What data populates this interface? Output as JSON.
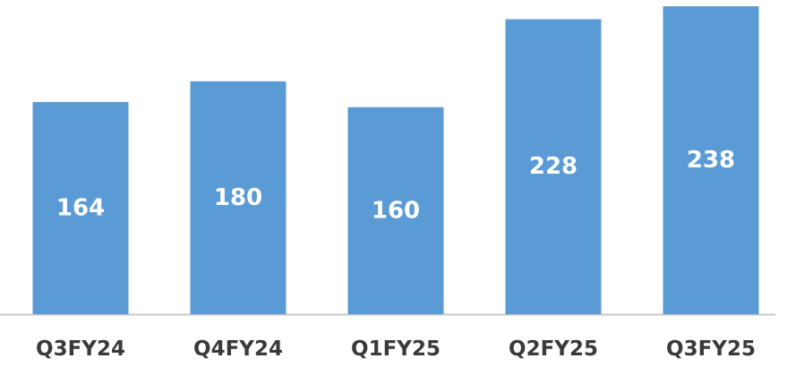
{
  "chart_data": {
    "type": "bar",
    "categories": [
      "Q3FY24",
      "Q4FY24",
      "Q1FY25",
      "Q2FY25",
      "Q3FY25"
    ],
    "values": [
      164,
      180,
      160,
      228,
      238
    ],
    "color": "#5b9bd5"
  }
}
